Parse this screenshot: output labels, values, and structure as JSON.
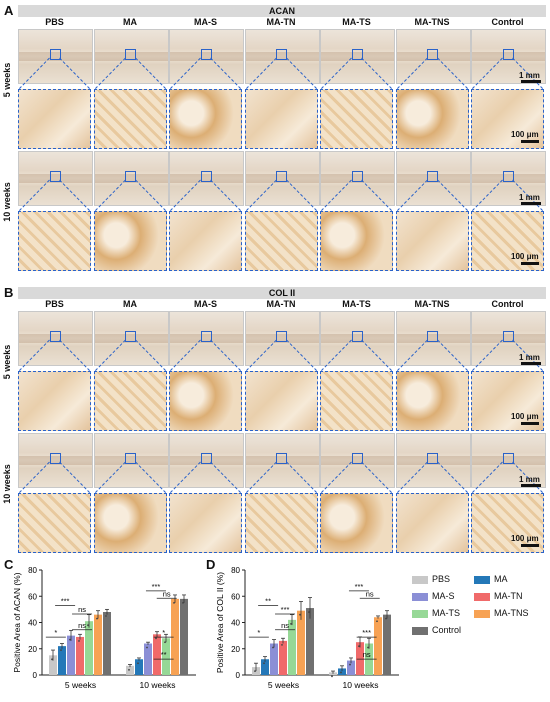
{
  "panel_a": {
    "letter": "A",
    "stain": "ACAN",
    "columns": [
      "PBS",
      "MA",
      "MA-S",
      "MA-TN",
      "MA-TS",
      "MA-TNS",
      "Control"
    ],
    "rows": [
      "5 weeks",
      "10 weeks"
    ],
    "scale_low": "1 mm",
    "scale_high": "100 μm"
  },
  "panel_b": {
    "letter": "B",
    "stain": "COL II",
    "columns": [
      "PBS",
      "MA",
      "MA-S",
      "MA-TN",
      "MA-TS",
      "MA-TNS",
      "Control"
    ],
    "rows": [
      "5 weeks",
      "10 weeks"
    ],
    "scale_low": "1 mm",
    "scale_high": "100 μm"
  },
  "legend": {
    "items": [
      {
        "name": "PBS",
        "color": "#c8c8c8"
      },
      {
        "name": "MA",
        "color": "#2478b8"
      },
      {
        "name": "MA-S",
        "color": "#8b8fd6"
      },
      {
        "name": "MA-TN",
        "color": "#f06a6a"
      },
      {
        "name": "MA-TS",
        "color": "#96d896"
      },
      {
        "name": "MA-TNS",
        "color": "#f7a254"
      },
      {
        "name": "Control",
        "color": "#707070"
      }
    ]
  },
  "chart_data": [
    {
      "letter": "C",
      "type": "bar",
      "ylabel": "Positive Area of ACAN (%)",
      "ylim": [
        0,
        80
      ],
      "yticks": [
        "0",
        "20",
        "40",
        "60",
        "80"
      ],
      "categories": [
        "5 weeks",
        "10 weeks"
      ],
      "series": [
        {
          "name": "PBS",
          "values": [
            15,
            7
          ],
          "err": [
            4,
            1
          ]
        },
        {
          "name": "MA",
          "values": [
            22,
            12
          ],
          "err": [
            2,
            1
          ]
        },
        {
          "name": "MA-S",
          "values": [
            30,
            24
          ],
          "err": [
            4,
            1
          ]
        },
        {
          "name": "MA-TN",
          "values": [
            29,
            31
          ],
          "err": [
            2,
            2
          ]
        },
        {
          "name": "MA-TS",
          "values": [
            41,
            28
          ],
          "err": [
            5,
            3
          ]
        },
        {
          "name": "MA-TNS",
          "values": [
            46,
            58
          ],
          "err": [
            3,
            3
          ]
        },
        {
          "name": "Control",
          "values": [
            48,
            58
          ],
          "err": [
            2,
            3
          ]
        }
      ],
      "annotations": [
        "*",
        "ns",
        "***",
        "ns",
        "**",
        "*",
        "***",
        "ns"
      ]
    },
    {
      "letter": "D",
      "type": "bar",
      "ylabel": "Positive Area of COL II (%)",
      "ylim": [
        0,
        80
      ],
      "yticks": [
        "0",
        "20",
        "40",
        "60",
        "80"
      ],
      "categories": [
        "5 weeks",
        "10 weeks"
      ],
      "series": [
        {
          "name": "PBS",
          "values": [
            6,
            2
          ],
          "err": [
            3,
            1
          ]
        },
        {
          "name": "MA",
          "values": [
            12,
            5
          ],
          "err": [
            2,
            2
          ]
        },
        {
          "name": "MA-S",
          "values": [
            24,
            11
          ],
          "err": [
            3,
            2
          ]
        },
        {
          "name": "MA-TN",
          "values": [
            26,
            25
          ],
          "err": [
            2,
            4
          ]
        },
        {
          "name": "MA-TS",
          "values": [
            42,
            24
          ],
          "err": [
            4,
            4
          ]
        },
        {
          "name": "MA-TNS",
          "values": [
            49,
            44
          ],
          "err": [
            7,
            1
          ]
        },
        {
          "name": "Control",
          "values": [
            51,
            46
          ],
          "err": [
            8,
            3
          ]
        }
      ],
      "annotations": [
        "*",
        "ns",
        "**",
        "***",
        "ns",
        "***",
        "***",
        "ns"
      ]
    }
  ]
}
